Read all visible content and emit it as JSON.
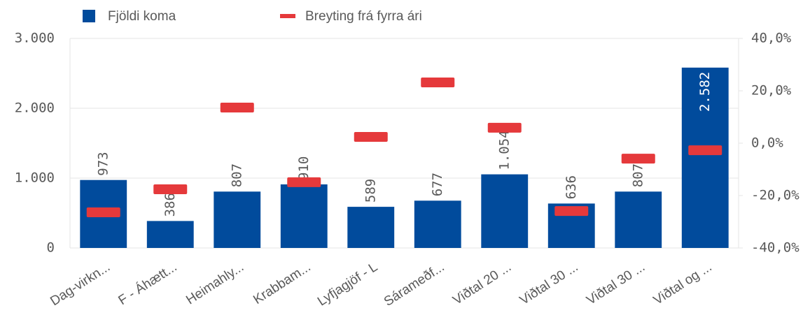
{
  "chart_data": {
    "type": "bar-line",
    "legend": [
      {
        "name": "Fjöldi koma",
        "color": "#014b9c"
      },
      {
        "name": "Breyting frá fyrra ári",
        "color": "#e5393b"
      }
    ],
    "categories": [
      "Dag-virkn...",
      "F - Áhætt...",
      "Heimahly...",
      "Krabbam...",
      "Lyfjagjöf - L",
      "Sárameðf...",
      "Viðtal 20 ...",
      "Viðtal 30 ...",
      "Viðtal 30 ...",
      "Viðtal og ..."
    ],
    "series": [
      {
        "name": "Fjöldi koma",
        "color": "#014b9c",
        "type": "bar",
        "values": [
          973,
          386,
          807,
          910,
          589,
          677,
          1054,
          636,
          807,
          2582
        ],
        "value_labels": [
          "973",
          "386",
          "807",
          "910",
          "589",
          "677",
          "1.054",
          "636",
          "807",
          "2.582"
        ]
      },
      {
        "name": "Breyting frá fyrra ári",
        "color": "#e5393b",
        "type": "marker",
        "axis": "y2",
        "values": [
          -26.4,
          -17.6,
          13.6,
          -14.9,
          2.4,
          23.2,
          5.9,
          -25.9,
          -5.9,
          -2.7
        ]
      }
    ],
    "ylim": [
      0,
      3000
    ],
    "yticks": [
      0,
      {
        "value": 1000,
        "label": "1.000"
      },
      {
        "value": 2000,
        "label": "2.000"
      },
      {
        "value": 3000,
        "label": "3.000"
      }
    ],
    "y2lim": [
      -40,
      40
    ],
    "y2ticks": [
      {
        "value": -40,
        "label": "-40,0%"
      },
      {
        "value": -20,
        "label": "-20,0%"
      },
      {
        "value": 0,
        "label": "0,0%"
      },
      {
        "value": 20,
        "label": "20,0%"
      },
      {
        "value": 40,
        "label": "40,0%"
      }
    ],
    "grid": true
  }
}
